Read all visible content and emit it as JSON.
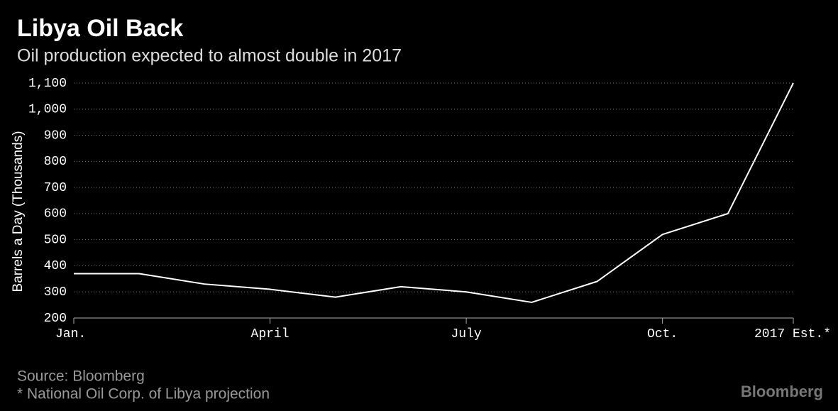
{
  "chart_data": {
    "type": "line",
    "title": "Libya Oil Back",
    "subtitle": "Oil production expected to almost double in 2017",
    "y_label": "Barrels a Day (Thousands)",
    "source": "Source: Bloomberg",
    "note": "* National Oil Corp. of Libya projection",
    "watermark": "Bloomberg",
    "categories": [
      "Jan.",
      null,
      null,
      "April",
      null,
      null,
      "July",
      null,
      null,
      "Oct.",
      null,
      "2017 Est.*"
    ],
    "values": [
      370,
      370,
      330,
      310,
      280,
      320,
      300,
      260,
      340,
      520,
      600,
      1100
    ],
    "color": "#ffffff",
    "ylim": [
      200,
      1100
    ],
    "yticks": [
      200,
      300,
      400,
      500,
      600,
      700,
      800,
      900,
      {
        "value": 1000,
        "label": "1,000"
      },
      {
        "value": 1100,
        "label": "1,100"
      }
    ],
    "grid": true
  }
}
